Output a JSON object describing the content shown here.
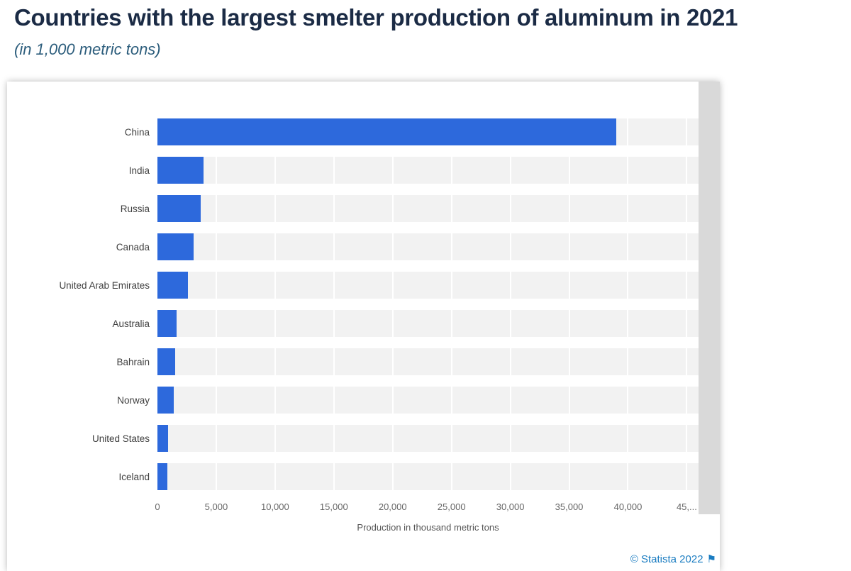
{
  "header": {
    "title": "Countries with the largest smelter production of aluminum in 2021",
    "subtitle": "(in 1,000 metric tons)"
  },
  "chart_data": {
    "type": "bar",
    "orientation": "horizontal",
    "title": "Countries with the largest smelter production of aluminum in 2021",
    "subtitle": "(in 1,000 metric tons)",
    "categories": [
      "China",
      "India",
      "Russia",
      "Canada",
      "United Arab Emirates",
      "Australia",
      "Bahrain",
      "Norway",
      "United States",
      "Iceland"
    ],
    "values": [
      39000,
      3900,
      3700,
      3100,
      2600,
      1600,
      1500,
      1400,
      880,
      840
    ],
    "xlabel": "Production in thousand metric tons",
    "ylabel": "",
    "xlim": [
      0,
      46000
    ],
    "ticks": [
      {
        "value": 0,
        "label": "0"
      },
      {
        "value": 5000,
        "label": "5,000"
      },
      {
        "value": 10000,
        "label": "10,000"
      },
      {
        "value": 15000,
        "label": "15,000"
      },
      {
        "value": 20000,
        "label": "20,000"
      },
      {
        "value": 25000,
        "label": "25,000"
      },
      {
        "value": 30000,
        "label": "30,000"
      },
      {
        "value": 35000,
        "label": "35,000"
      },
      {
        "value": 40000,
        "label": "40,000"
      },
      {
        "value": 45000,
        "label": "45,..."
      }
    ],
    "grid": true,
    "legend": false,
    "bar_color": "#2d69dc",
    "track_color": "#f2f2f2"
  },
  "footer": {
    "copyright": "© Statista 2022",
    "flag_icon": "⚑"
  }
}
